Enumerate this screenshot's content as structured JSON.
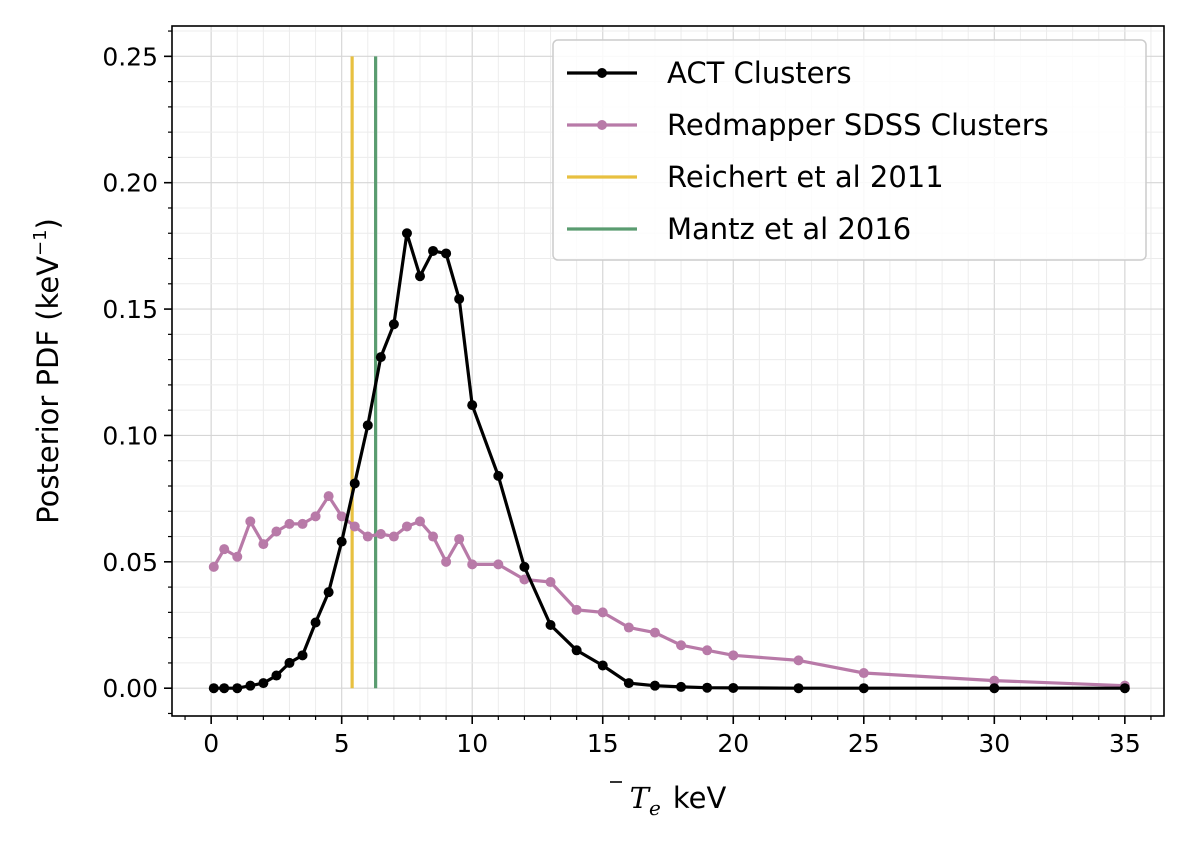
{
  "chart_data": {
    "type": "line",
    "xlabel_symbol": "T",
    "xlabel_subscript": "e",
    "xlabel_unit": "keV",
    "ylabel": "Posterior PDF (keV",
    "ylabel_exponent": "−1",
    "ylabel_close": ")",
    "xlim": [
      -1.5,
      36.5
    ],
    "ylim": [
      -0.011,
      0.262
    ],
    "grid": true,
    "legend_position": "top-right",
    "x_ticks": [
      0,
      5,
      10,
      15,
      20,
      25,
      30,
      35
    ],
    "x_tick_labels": [
      "0",
      "5",
      "10",
      "15",
      "20",
      "25",
      "30",
      "35"
    ],
    "y_ticks": [
      0,
      0.05,
      0.1,
      0.15,
      0.2,
      0.25
    ],
    "y_tick_labels": [
      "0.00",
      "0.05",
      "0.10",
      "0.15",
      "0.20",
      "0.25"
    ],
    "series": [
      {
        "name": "ACT Clusters",
        "color": "#000000",
        "kind": "line-markers",
        "x": [
          0.1,
          0.5,
          1.0,
          1.5,
          2.0,
          2.5,
          3.0,
          3.5,
          4.0,
          4.5,
          5.0,
          5.5,
          6.0,
          6.5,
          7.0,
          7.5,
          8.0,
          8.5,
          9.0,
          9.5,
          10.0,
          11.0,
          12.0,
          13.0,
          14.0,
          15.0,
          16.0,
          17.0,
          18.0,
          19.0,
          20.0,
          22.5,
          25.0,
          30.0,
          35.0
        ],
        "y": [
          0.0,
          0.0,
          0.0,
          0.001,
          0.002,
          0.005,
          0.01,
          0.013,
          0.026,
          0.038,
          0.058,
          0.081,
          0.104,
          0.131,
          0.144,
          0.18,
          0.163,
          0.173,
          0.172,
          0.154,
          0.112,
          0.084,
          0.048,
          0.025,
          0.015,
          0.009,
          0.002,
          0.001,
          0.0005,
          0.0002,
          0.0001,
          0.0,
          0.0,
          0.0,
          0.0
        ]
      },
      {
        "name": "Redmapper SDSS Clusters",
        "color": "#b87aa8",
        "kind": "line-markers",
        "x": [
          0.1,
          0.5,
          1.0,
          1.5,
          2.0,
          2.5,
          3.0,
          3.5,
          4.0,
          4.5,
          5.0,
          5.5,
          6.0,
          6.5,
          7.0,
          7.5,
          8.0,
          8.5,
          9.0,
          9.5,
          10.0,
          11.0,
          12.0,
          13.0,
          14.0,
          15.0,
          16.0,
          17.0,
          18.0,
          19.0,
          20.0,
          22.5,
          25.0,
          30.0,
          35.0
        ],
        "y": [
          0.048,
          0.055,
          0.052,
          0.066,
          0.057,
          0.062,
          0.065,
          0.065,
          0.068,
          0.076,
          0.068,
          0.064,
          0.06,
          0.061,
          0.06,
          0.064,
          0.066,
          0.06,
          0.05,
          0.059,
          0.049,
          0.049,
          0.043,
          0.042,
          0.031,
          0.03,
          0.024,
          0.022,
          0.017,
          0.015,
          0.013,
          0.011,
          0.006,
          0.003,
          0.001
        ]
      },
      {
        "name": "Reichert et al 2011",
        "color": "#e8c040",
        "kind": "vline",
        "x": 5.4,
        "y_range": [
          0.0,
          0.25
        ]
      },
      {
        "name": "Mantz et al 2016",
        "color": "#5a9c70",
        "kind": "vline",
        "x": 6.3,
        "y_range": [
          0.0,
          0.25
        ]
      }
    ]
  }
}
